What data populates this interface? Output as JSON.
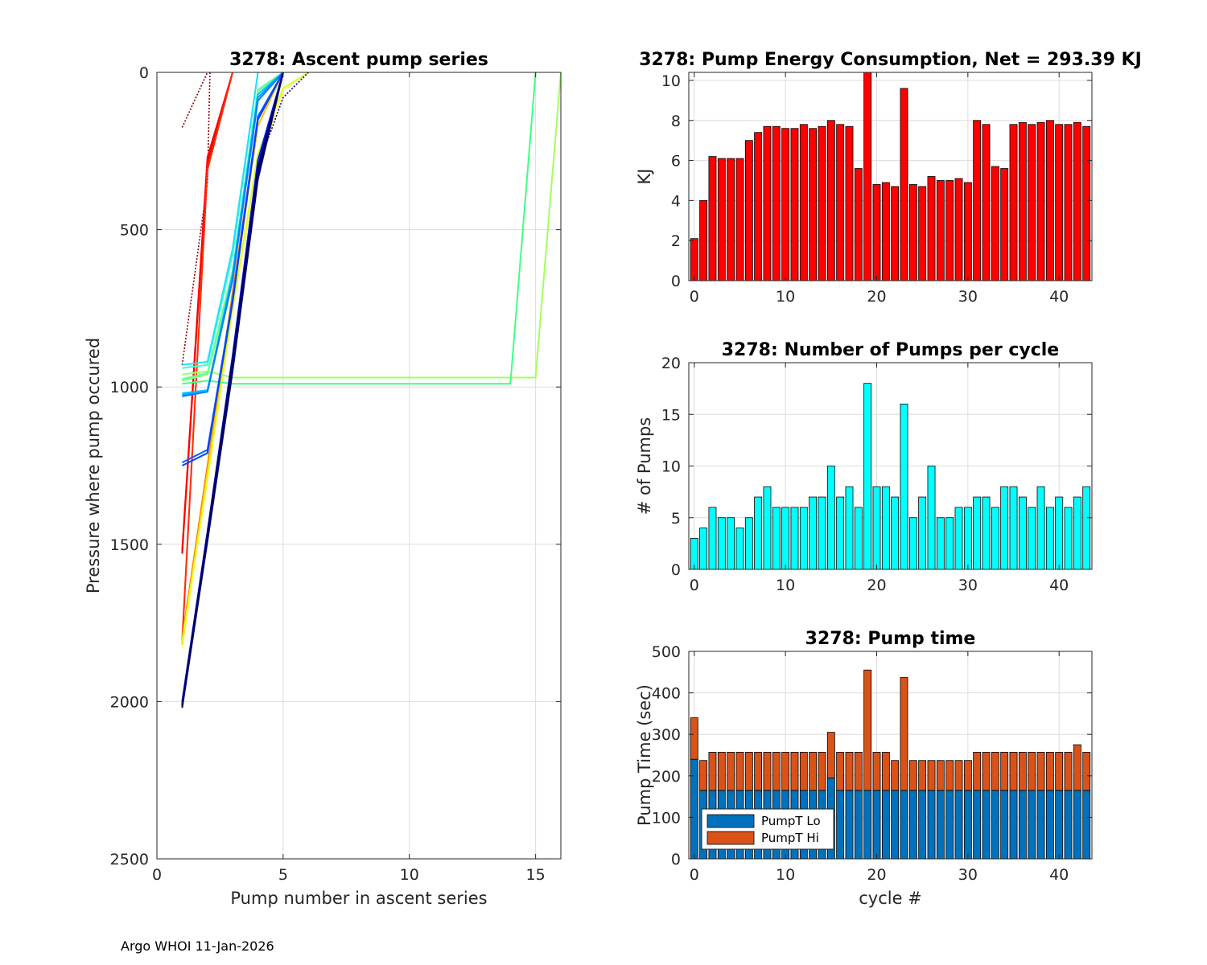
{
  "footer": "Argo WHOI 11-Jan-2026",
  "chart_data": [
    {
      "id": "ascent",
      "type": "line",
      "title": "3278: Ascent pump series",
      "xlabel": "Pump number in ascent series",
      "ylabel": "Pressure where pump occured",
      "xlim": [
        0,
        16
      ],
      "ylim": [
        0,
        2500
      ],
      "y_reversed": true,
      "xticks": [
        0,
        5,
        10,
        15
      ],
      "yticks": [
        0,
        500,
        1000,
        1500,
        2000,
        2500
      ],
      "grid": true,
      "series": [
        {
          "name": "c0",
          "color": "#800000",
          "style": "dotted",
          "x": [
            1,
            2
          ],
          "y": [
            175,
            0
          ]
        },
        {
          "name": "c1",
          "color": "#9a0000",
          "style": "dotted",
          "x": [
            1,
            2,
            2.1
          ],
          "y": [
            930,
            350,
            0
          ]
        },
        {
          "name": "c2",
          "color": "#d00000",
          "style": "solid",
          "x": [
            1,
            2,
            3
          ],
          "y": [
            1530,
            290,
            0
          ]
        },
        {
          "name": "c3",
          "color": "#ff0000",
          "style": "solid",
          "x": [
            1,
            2,
            3
          ],
          "y": [
            1520,
            270,
            0
          ]
        },
        {
          "name": "c4",
          "color": "#ff2000",
          "style": "solid",
          "x": [
            1,
            2,
            3
          ],
          "y": [
            1810,
            310,
            0
          ]
        },
        {
          "name": "c5",
          "color": "#ff4000",
          "style": "dotted",
          "x": [
            1,
            2,
            3
          ],
          "y": [
            1790,
            300,
            0
          ]
        },
        {
          "name": "c6",
          "color": "#ff8000",
          "style": "solid",
          "x": [
            1,
            2,
            3,
            4,
            5
          ],
          "y": [
            1800,
            1250,
            700,
            150,
            0
          ]
        },
        {
          "name": "c7",
          "color": "#ffc000",
          "style": "solid",
          "x": [
            1,
            2,
            3,
            4,
            5
          ],
          "y": [
            1820,
            1270,
            720,
            170,
            0
          ]
        },
        {
          "name": "c8",
          "color": "#ffff00",
          "style": "dotted",
          "x": [
            1,
            2,
            3,
            4,
            5,
            6
          ],
          "y": [
            1830,
            1300,
            760,
            300,
            60,
            0
          ]
        },
        {
          "name": "c9",
          "color": "#e0ff20",
          "style": "solid",
          "x": [
            1,
            2,
            3,
            4,
            5,
            6
          ],
          "y": [
            1810,
            1290,
            750,
            260,
            50,
            0
          ]
        },
        {
          "name": "c10",
          "color": "#a0ff60",
          "style": "solid",
          "x": [
            1,
            2,
            3,
            15,
            16
          ],
          "y": [
            960,
            950,
            970,
            970,
            0
          ]
        },
        {
          "name": "c11",
          "color": "#80ff80",
          "style": "solid",
          "x": [
            1,
            2,
            3,
            4,
            5
          ],
          "y": [
            980,
            960,
            650,
            60,
            0
          ]
        },
        {
          "name": "c12",
          "color": "#40ff80",
          "style": "solid",
          "x": [
            1,
            2,
            3,
            14,
            15
          ],
          "y": [
            990,
            980,
            990,
            990,
            0
          ]
        },
        {
          "name": "c13",
          "color": "#60ffa0",
          "style": "solid",
          "x": [
            1,
            2,
            3,
            4,
            5
          ],
          "y": [
            975,
            955,
            630,
            55,
            0
          ]
        },
        {
          "name": "c14",
          "color": "#40ffc0",
          "style": "solid",
          "x": [
            1,
            2,
            3,
            4
          ],
          "y": [
            940,
            930,
            580,
            0
          ]
        },
        {
          "name": "c15",
          "color": "#20e0ff",
          "style": "solid",
          "x": [
            1,
            2,
            3,
            4
          ],
          "y": [
            930,
            920,
            560,
            0
          ]
        },
        {
          "name": "c16",
          "color": "#00c0ff",
          "style": "solid",
          "x": [
            1,
            2,
            3,
            4,
            5
          ],
          "y": [
            1020,
            1010,
            640,
            70,
            0
          ]
        },
        {
          "name": "c17",
          "color": "#00a0ff",
          "style": "solid",
          "x": [
            1,
            2,
            3,
            4,
            5
          ],
          "y": [
            1025,
            1015,
            650,
            80,
            0
          ]
        },
        {
          "name": "c18",
          "color": "#0080ff",
          "style": "solid",
          "x": [
            1,
            2,
            3,
            4,
            5
          ],
          "y": [
            1030,
            1015,
            660,
            90,
            0
          ]
        },
        {
          "name": "c19",
          "color": "#0060ff",
          "style": "solid",
          "x": [
            1,
            2,
            3,
            4,
            5
          ],
          "y": [
            1240,
            1200,
            720,
            140,
            0
          ]
        },
        {
          "name": "c20",
          "color": "#0040ff",
          "style": "solid",
          "x": [
            1,
            2,
            3,
            4,
            5
          ],
          "y": [
            1250,
            1210,
            730,
            150,
            0
          ]
        },
        {
          "name": "c21",
          "color": "#0020e0",
          "style": "solid",
          "x": [
            1,
            2,
            3,
            4,
            5
          ],
          "y": [
            2000,
            1460,
            900,
            280,
            0
          ]
        },
        {
          "name": "c22",
          "color": "#0000c0",
          "style": "solid",
          "x": [
            1,
            2,
            3,
            4,
            5
          ],
          "y": [
            2010,
            1470,
            920,
            300,
            0
          ]
        },
        {
          "name": "c23",
          "color": "#0000a0",
          "style": "solid",
          "x": [
            1,
            2,
            3,
            4,
            5
          ],
          "y": [
            2015,
            1480,
            930,
            320,
            0
          ]
        },
        {
          "name": "c24",
          "color": "#000090",
          "style": "dotted",
          "x": [
            1,
            2,
            3,
            4,
            5,
            6
          ],
          "y": [
            2005,
            1470,
            920,
            300,
            80,
            0
          ]
        },
        {
          "name": "c25",
          "color": "#000080",
          "style": "solid",
          "x": [
            1,
            2,
            3,
            4,
            5
          ],
          "y": [
            2010,
            1465,
            910,
            310,
            0
          ]
        },
        {
          "name": "c26",
          "color": "#000070",
          "style": "solid",
          "x": [
            1,
            2,
            3,
            4,
            5
          ],
          "y": [
            2020,
            1490,
            950,
            340,
            0
          ]
        },
        {
          "name": "c27",
          "color": "#000060",
          "style": "solid",
          "x": [
            1,
            2,
            3,
            4,
            5
          ],
          "y": [
            2012,
            1475,
            925,
            315,
            0
          ]
        }
      ]
    },
    {
      "id": "energy",
      "type": "bar",
      "title": "3278: Pump Energy Consumption,  Net = 293.39 KJ",
      "xlabel": "",
      "ylabel": "KJ",
      "xlim": [
        -0.6,
        43.6
      ],
      "ylim": [
        0,
        10.4
      ],
      "xticks": [
        0,
        10,
        20,
        30,
        40
      ],
      "yticks": [
        0,
        2,
        4,
        6,
        8,
        10
      ],
      "grid": true,
      "color": "#ff0000",
      "x": [
        0,
        1,
        2,
        3,
        4,
        5,
        6,
        7,
        8,
        9,
        10,
        11,
        12,
        13,
        14,
        15,
        16,
        17,
        18,
        19,
        20,
        21,
        22,
        23,
        24,
        25,
        26,
        27,
        28,
        29,
        30,
        31,
        32,
        33,
        34,
        35,
        36,
        37,
        38,
        39,
        40,
        41,
        42,
        43
      ],
      "values": [
        2.1,
        4.0,
        6.2,
        6.1,
        6.1,
        6.1,
        7.0,
        7.4,
        7.7,
        7.7,
        7.6,
        7.6,
        7.8,
        7.6,
        7.7,
        8.0,
        7.8,
        7.7,
        5.6,
        10.4,
        4.8,
        4.9,
        4.7,
        9.6,
        4.8,
        4.7,
        5.2,
        5.0,
        5.0,
        5.1,
        4.9,
        8.0,
        7.8,
        5.7,
        5.6,
        7.8,
        7.9,
        7.8,
        7.9,
        8.0,
        7.8,
        7.8,
        7.9,
        7.7
      ]
    },
    {
      "id": "pumps",
      "type": "bar",
      "title": "3278: Number of Pumps per cycle",
      "xlabel": "",
      "ylabel": "# of Pumps",
      "xlim": [
        -0.6,
        43.6
      ],
      "ylim": [
        0,
        20
      ],
      "xticks": [
        0,
        10,
        20,
        30,
        40
      ],
      "yticks": [
        0,
        5,
        10,
        15,
        20
      ],
      "grid": true,
      "color": "#00ffff",
      "x": [
        0,
        1,
        2,
        3,
        4,
        5,
        6,
        7,
        8,
        9,
        10,
        11,
        12,
        13,
        14,
        15,
        16,
        17,
        18,
        19,
        20,
        21,
        22,
        23,
        24,
        25,
        26,
        27,
        28,
        29,
        30,
        31,
        32,
        33,
        34,
        35,
        36,
        37,
        38,
        39,
        40,
        41,
        42,
        43
      ],
      "values": [
        3,
        4,
        6,
        5,
        5,
        4,
        5,
        7,
        8,
        6,
        6,
        6,
        6,
        7,
        7,
        10,
        7,
        8,
        6,
        18,
        8,
        8,
        7,
        16,
        5,
        7,
        10,
        5,
        5,
        6,
        6,
        7,
        7,
        6,
        8,
        8,
        7,
        6,
        8,
        6,
        7,
        6,
        7,
        8
      ]
    },
    {
      "id": "pumptime",
      "type": "bar",
      "stacked": true,
      "title": "3278: Pump time",
      "xlabel": "cycle #",
      "ylabel": "Pump Time (sec)",
      "xlim": [
        -0.6,
        43.6
      ],
      "ylim": [
        0,
        500
      ],
      "xticks": [
        0,
        10,
        20,
        30,
        40
      ],
      "yticks": [
        0,
        100,
        200,
        300,
        400,
        500
      ],
      "grid": true,
      "legend_position": "bottom-left",
      "x": [
        0,
        1,
        2,
        3,
        4,
        5,
        6,
        7,
        8,
        9,
        10,
        11,
        12,
        13,
        14,
        15,
        16,
        17,
        18,
        19,
        20,
        21,
        22,
        23,
        24,
        25,
        26,
        27,
        28,
        29,
        30,
        31,
        32,
        33,
        34,
        35,
        36,
        37,
        38,
        39,
        40,
        41,
        42,
        43
      ],
      "series": [
        {
          "name": "PumpT Lo",
          "color": "#0072bd",
          "values": [
            240,
            165,
            165,
            165,
            165,
            165,
            165,
            165,
            165,
            165,
            165,
            165,
            165,
            165,
            165,
            195,
            165,
            165,
            165,
            165,
            165,
            165,
            165,
            165,
            165,
            165,
            165,
            165,
            165,
            165,
            165,
            165,
            165,
            165,
            165,
            165,
            165,
            165,
            165,
            165,
            165,
            165,
            165,
            165
          ]
        },
        {
          "name": "PumpT Hi",
          "color": "#d95319",
          "values": [
            100,
            72,
            92,
            92,
            92,
            92,
            92,
            92,
            92,
            92,
            92,
            92,
            92,
            92,
            92,
            110,
            92,
            92,
            92,
            290,
            92,
            92,
            72,
            272,
            72,
            72,
            72,
            72,
            72,
            72,
            72,
            92,
            92,
            92,
            92,
            92,
            92,
            92,
            92,
            92,
            92,
            92,
            110,
            92
          ]
        }
      ]
    }
  ]
}
